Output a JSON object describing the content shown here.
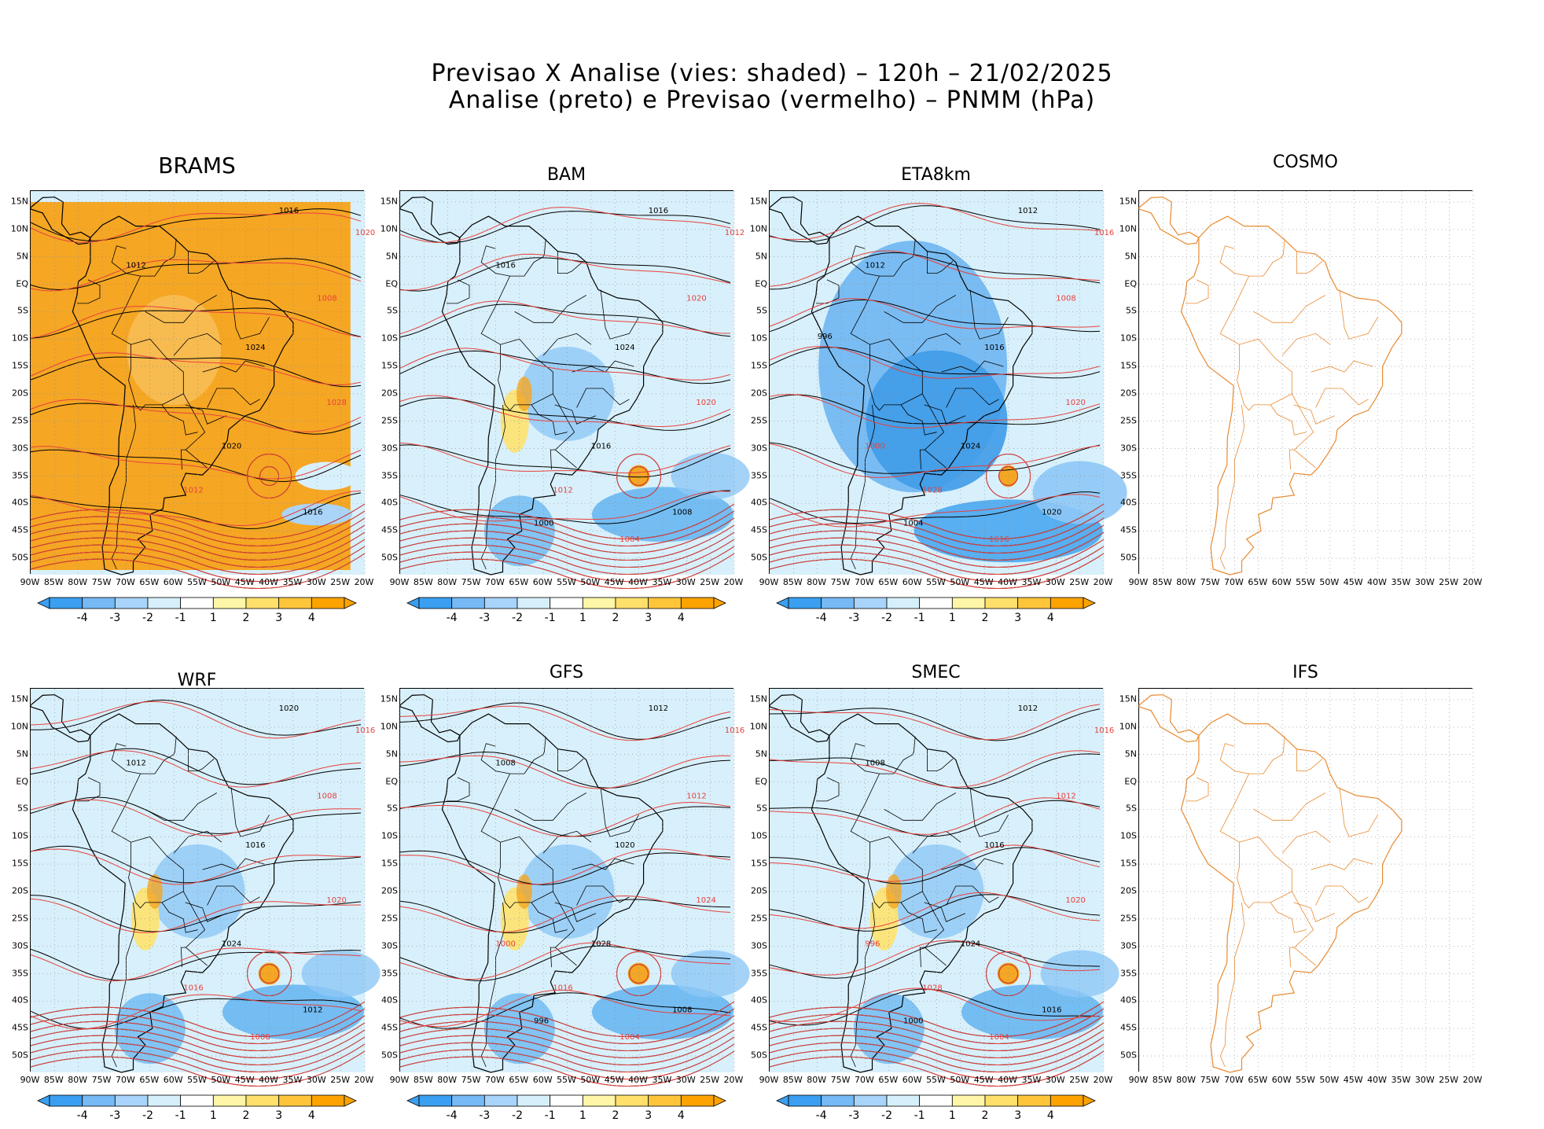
{
  "title_line1": "Previsao X Analise (vies: shaded) – 120h – 21/02/2025",
  "title_line2": "Analise (preto) e Previsao (vermelho) – PNMM (hPa)",
  "lat_labels": [
    "15N",
    "10N",
    "5N",
    "EQ",
    "5S",
    "10S",
    "15S",
    "20S",
    "25S",
    "30S",
    "35S",
    "40S",
    "45S",
    "50S"
  ],
  "lon_labels": [
    "90W",
    "85W",
    "80W",
    "75W",
    "70W",
    "65W",
    "60W",
    "55W",
    "50W",
    "45W",
    "40W",
    "35W",
    "30W",
    "25W",
    "20W"
  ],
  "colorbar_labels": [
    "-4",
    "-3",
    "-2",
    "-1",
    "1",
    "2",
    "3",
    "4"
  ],
  "colorbar_colors": [
    "#3a9ff0",
    "#75b9f5",
    "#a8d3fa",
    "#d6f0fb",
    "#ffffff",
    "#fff6a8",
    "#ffe06b",
    "#ffc53a",
    "#fca300"
  ],
  "colors": {
    "analysis_contour": "#000000",
    "forecast_contour": "#e8413c",
    "map_outline_empty": "#e98a30",
    "ocean_neutral": "#d8f0fb",
    "positive_bias": "#f5a623",
    "negative_bias": "#4aa7ef"
  },
  "panels": [
    {
      "name": "BRAMS",
      "status": "data",
      "bias": "positive",
      "labels": [
        "1016",
        "1020",
        "1012",
        "1008",
        "1024",
        "1028",
        "1020",
        "1012",
        "1016"
      ]
    },
    {
      "name": "BAM",
      "status": "data",
      "bias": "mixed",
      "labels": [
        "1016",
        "1012",
        "1016",
        "1020",
        "1024",
        "1020",
        "1016",
        "1012",
        "1008",
        "1004",
        "1000"
      ]
    },
    {
      "name": "ETA8km",
      "status": "data",
      "bias": "negative",
      "labels": [
        "1012",
        "1016",
        "1012",
        "1008",
        "1016",
        "1020",
        "1024",
        "1028",
        "1020",
        "1016",
        "1004",
        "1000",
        "996"
      ]
    },
    {
      "name": "COSMO",
      "status": "empty",
      "bias": "none",
      "labels": []
    },
    {
      "name": "WRF",
      "status": "data",
      "bias": "mixed",
      "labels": [
        "1020",
        "1016",
        "1012",
        "1008",
        "1016",
        "1020",
        "1024",
        "1016",
        "1012",
        "1008"
      ]
    },
    {
      "name": "GFS",
      "status": "data",
      "bias": "mixed",
      "labels": [
        "1012",
        "1016",
        "1008",
        "1012",
        "1020",
        "1024",
        "1028",
        "1016",
        "1008",
        "1004",
        "996",
        "1000"
      ]
    },
    {
      "name": "SMEC",
      "status": "data",
      "bias": "mixed",
      "labels": [
        "1012",
        "1016",
        "1008",
        "1012",
        "1016",
        "1020",
        "1024",
        "1028",
        "1016",
        "1004",
        "1000",
        "996"
      ]
    },
    {
      "name": "IFS",
      "status": "empty",
      "bias": "none",
      "labels": []
    }
  ]
}
